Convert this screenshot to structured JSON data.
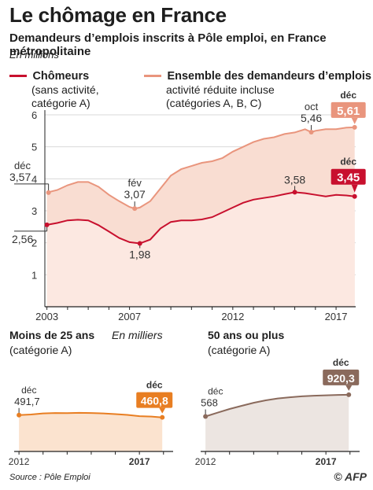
{
  "header": {
    "title": "Le chômage en France",
    "subtitle": "Demandeurs d’emplois inscrits à Pôle emploi, en France métropolitaine",
    "units": "En millions"
  },
  "legend": {
    "chomeurs_title": "Chômeurs",
    "chomeurs_sub1": "(sans activité,",
    "chomeurs_sub2": "catégorie A)",
    "ensemble_title": "Ensemble des demandeurs d’emplois",
    "ensemble_sub1": "activité réduite incluse",
    "ensemble_sub2": "(catégories A, B, C)"
  },
  "colors": {
    "chomeurs_line": "#c8102e",
    "ensemble_line": "#e9957d",
    "ensemble_fill": "#f9ddd2",
    "chomeurs_fill": "#fce8e1",
    "under25_line": "#e87e22",
    "under25_fill": "#fbe3cf",
    "over50_line": "#8a6a5c",
    "over50_fill": "#ece5e1"
  },
  "chart_data": [
    {
      "type": "area",
      "ylim": [
        0,
        6
      ],
      "yticks": [
        "1",
        "2",
        "3",
        "4",
        "5",
        "6"
      ],
      "xticks": [
        "2003",
        "2007",
        "2012",
        "2017"
      ],
      "xtick_years": [
        2003,
        2007,
        2012,
        2017
      ],
      "xlim": [
        2002.9,
        2017.95
      ],
      "series": [
        {
          "name": "Ensemble des demandeurs d’emplois",
          "x": [
            2003.0,
            2003.5,
            2004.0,
            2004.5,
            2005.0,
            2005.5,
            2006.0,
            2006.5,
            2007.0,
            2007.25,
            2007.5,
            2008.0,
            2008.5,
            2009.0,
            2009.5,
            2010.0,
            2010.5,
            2011.0,
            2011.5,
            2012.0,
            2012.5,
            2013.0,
            2013.5,
            2014.0,
            2014.5,
            2015.0,
            2015.5,
            2015.8,
            2016.0,
            2016.5,
            2017.0,
            2017.5,
            2017.9
          ],
          "values": [
            3.57,
            3.65,
            3.8,
            3.9,
            3.9,
            3.75,
            3.5,
            3.3,
            3.12,
            3.07,
            3.1,
            3.3,
            3.7,
            4.1,
            4.3,
            4.4,
            4.5,
            4.55,
            4.65,
            4.85,
            5.0,
            5.15,
            5.25,
            5.3,
            5.4,
            5.45,
            5.55,
            5.46,
            5.5,
            5.55,
            5.55,
            5.6,
            5.61
          ]
        },
        {
          "name": "Chômeurs",
          "x": [
            2003.0,
            2003.5,
            2004.0,
            2004.5,
            2005.0,
            2005.5,
            2006.0,
            2006.5,
            2007.0,
            2007.5,
            2008.0,
            2008.5,
            2009.0,
            2009.5,
            2010.0,
            2010.5,
            2011.0,
            2011.5,
            2012.0,
            2012.5,
            2013.0,
            2013.5,
            2014.0,
            2014.5,
            2015.0,
            2015.5,
            2016.0,
            2016.5,
            2017.0,
            2017.5,
            2017.9
          ],
          "values": [
            2.56,
            2.62,
            2.7,
            2.72,
            2.7,
            2.55,
            2.35,
            2.15,
            2.02,
            1.98,
            2.1,
            2.45,
            2.65,
            2.7,
            2.7,
            2.73,
            2.8,
            2.95,
            3.1,
            3.25,
            3.35,
            3.4,
            3.45,
            3.52,
            3.58,
            3.55,
            3.5,
            3.45,
            3.5,
            3.48,
            3.45
          ]
        }
      ],
      "annotations": [
        {
          "label": "déc",
          "value": "3,57"
        },
        {
          "label": "fév",
          "value": "3,07"
        },
        {
          "label": "oct",
          "value": "5,46"
        },
        {
          "label": "déc",
          "value": "5,61"
        },
        {
          "label": "",
          "value": "2,56"
        },
        {
          "label": "",
          "value": "1,98"
        },
        {
          "label": "",
          "value": "3,58"
        },
        {
          "label": "déc",
          "value": "3,45"
        }
      ]
    },
    {
      "type": "area",
      "title": "Moins de 25 ans",
      "subtitle": "(catégorie A)",
      "units": "En milliers",
      "xticks": [
        "2012",
        "2017"
      ],
      "xtick_years": [
        2012,
        2017
      ],
      "xlim": [
        2011.8,
        2018.4
      ],
      "ylim": [
        0,
        1000
      ],
      "series": [
        {
          "name": "Moins de 25 ans",
          "x": [
            2012.0,
            2012.5,
            2013.0,
            2013.5,
            2014.0,
            2014.5,
            2015.0,
            2015.5,
            2016.0,
            2016.5,
            2017.0,
            2017.5,
            2017.95
          ],
          "values": [
            491.7,
            500,
            515,
            520,
            518,
            522,
            520,
            515,
            505,
            495,
            478,
            472,
            460.8
          ]
        }
      ],
      "annotations": [
        {
          "label": "déc",
          "value": "491,7"
        },
        {
          "label": "déc",
          "value": "460,8"
        }
      ]
    },
    {
      "type": "area",
      "title": "50 ans ou plus",
      "subtitle": "(catégorie A)",
      "xticks": [
        "2012",
        "2017"
      ],
      "xtick_years": [
        2012,
        2017
      ],
      "xlim": [
        2011.8,
        2018.4
      ],
      "ylim": [
        0,
        1200
      ],
      "series": [
        {
          "name": "50 ans ou plus",
          "x": [
            2012.0,
            2012.5,
            2013.0,
            2013.5,
            2014.0,
            2014.5,
            2015.0,
            2015.5,
            2016.0,
            2016.5,
            2017.0,
            2017.5,
            2017.95
          ],
          "values": [
            568,
            630,
            690,
            740,
            790,
            830,
            860,
            880,
            895,
            905,
            912,
            918,
            920.3
          ]
        }
      ],
      "annotations": [
        {
          "label": "déc",
          "value": "568"
        },
        {
          "label": "déc",
          "value": "920,3"
        }
      ]
    }
  ],
  "footer": {
    "source": "Source : Pôle Emploi",
    "copyright": "©",
    "logo": "AFP"
  }
}
